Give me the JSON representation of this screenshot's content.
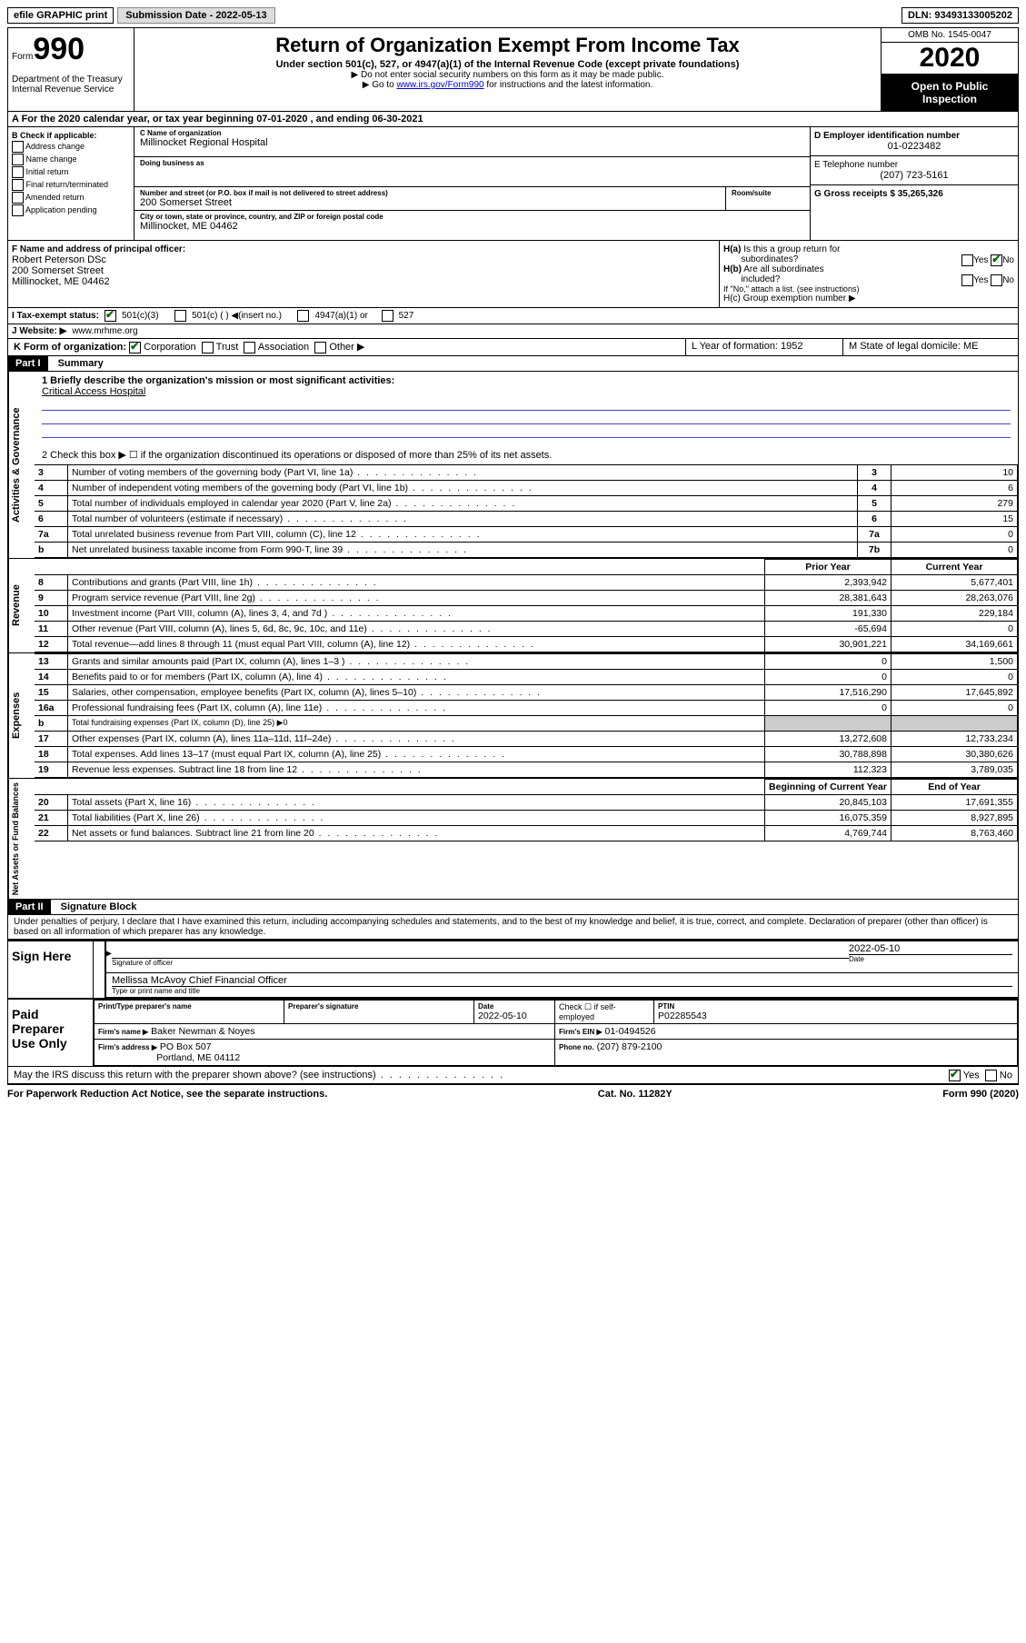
{
  "topbar": {
    "efile": "efile GRAPHIC print",
    "submission_label": "Submission Date - 2022-05-13",
    "dln": "DLN: 93493133005202"
  },
  "header": {
    "form_prefix": "Form",
    "form_number": "990",
    "dept": "Department of the Treasury\nInternal Revenue Service",
    "title": "Return of Organization Exempt From Income Tax",
    "subline": "Under section 501(c), 527, or 4947(a)(1) of the Internal Revenue Code (except private foundations)",
    "note1": "Do not enter social security numbers on this form as it may be made public.",
    "note2_prefix": "Go to ",
    "note2_link": "www.irs.gov/Form990",
    "note2_suffix": " for instructions and the latest information.",
    "omb": "OMB No. 1545-0047",
    "year": "2020",
    "open_public": "Open to Public Inspection"
  },
  "row_a": "A   For the 2020 calendar year, or tax year beginning 07-01-2020    , and ending 06-30-2021",
  "section_b": {
    "label": "B Check if applicable:",
    "items": [
      "Address change",
      "Name change",
      "Initial return",
      "Final return/terminated",
      "Amended return",
      "Application pending"
    ]
  },
  "section_c": {
    "name_label": "C Name of organization",
    "org_name": "Millinocket Regional Hospital",
    "dba_label": "Doing business as",
    "dba": "",
    "street_label": "Number and street (or P.O. box if mail is not delivered to street address)",
    "room_label": "Room/suite",
    "street": "200 Somerset Street",
    "city_label": "City or town, state or province, country, and ZIP or foreign postal code",
    "city": "Millinocket, ME  04462"
  },
  "section_d": {
    "ein_label": "D Employer identification number",
    "ein": "01-0223482",
    "phone_label": "E Telephone number",
    "phone": "(207) 723-5161",
    "gross_label": "G Gross receipts $ 35,265,326"
  },
  "section_f": {
    "label": "F  Name and address of principal officer:",
    "name": "Robert Peterson DSc",
    "street": "200 Somerset Street",
    "city": "Millinocket, ME  04462"
  },
  "section_h": {
    "ha_label": "H(a)  Is this a group return for subordinates?",
    "ha_no": true,
    "hb_label": "H(b)  Are all subordinates included?",
    "hb_note": "If \"No,\" attach a list. (see instructions)",
    "hc_label": "H(c)  Group exemption number ▶"
  },
  "row_i": {
    "label": "I   Tax-exempt status:",
    "c3_checked": true,
    "opts": [
      "501(c)(3)",
      "501(c) (  ) ◀(insert no.)",
      "4947(a)(1) or",
      "527"
    ]
  },
  "row_j": {
    "label": "J  Website: ▶",
    "value": " www.mrhme.org"
  },
  "row_k": {
    "label": "K Form of organization:",
    "corp_checked": true,
    "opts": [
      "Corporation",
      "Trust",
      "Association",
      "Other ▶"
    ]
  },
  "row_lm": {
    "l": "L Year of formation: 1952",
    "m": "M State of legal domicile: ME"
  },
  "part1": {
    "header": "Part I",
    "title": "Summary",
    "q1_label": "1   Briefly describe the organization's mission or most significant activities:",
    "q1_text": "Critical Access Hospital",
    "q2": "2    Check this box ▶ ☐  if the organization discontinued its operations or disposed of more than 25% of its net assets.",
    "side_labels": {
      "gov": "Activities & Governance",
      "rev": "Revenue",
      "exp": "Expenses",
      "net": "Net Assets or Fund Balances"
    },
    "governance_rows": [
      {
        "n": "3",
        "text": "Number of voting members of the governing body (Part VI, line 1a)",
        "box": "3",
        "val": "10"
      },
      {
        "n": "4",
        "text": "Number of independent voting members of the governing body (Part VI, line 1b)",
        "box": "4",
        "val": "6"
      },
      {
        "n": "5",
        "text": "Total number of individuals employed in calendar year 2020 (Part V, line 2a)",
        "box": "5",
        "val": "279"
      },
      {
        "n": "6",
        "text": "Total number of volunteers (estimate if necessary)",
        "box": "6",
        "val": "15"
      },
      {
        "n": "7a",
        "text": "Total unrelated business revenue from Part VIII, column (C), line 12",
        "box": "7a",
        "val": "0"
      },
      {
        "n": "b",
        "text": "Net unrelated business taxable income from Form 990-T, line 39",
        "box": "7b",
        "val": "0"
      }
    ],
    "col_headers": {
      "prior": "Prior Year",
      "current": "Current Year",
      "begin": "Beginning of Current Year",
      "end": "End of Year"
    },
    "revenue_rows": [
      {
        "n": "8",
        "text": "Contributions and grants (Part VIII, line 1h)",
        "p": "2,393,942",
        "c": "5,677,401"
      },
      {
        "n": "9",
        "text": "Program service revenue (Part VIII, line 2g)",
        "p": "28,381,643",
        "c": "28,263,076"
      },
      {
        "n": "10",
        "text": "Investment income (Part VIII, column (A), lines 3, 4, and 7d )",
        "p": "191,330",
        "c": "229,184"
      },
      {
        "n": "11",
        "text": "Other revenue (Part VIII, column (A), lines 5, 6d, 8c, 9c, 10c, and 11e)",
        "p": "-65,694",
        "c": "0"
      },
      {
        "n": "12",
        "text": "Total revenue—add lines 8 through 11 (must equal Part VIII, column (A), line 12)",
        "p": "30,901,221",
        "c": "34,169,661"
      }
    ],
    "expense_rows": [
      {
        "n": "13",
        "text": "Grants and similar amounts paid (Part IX, column (A), lines 1–3 )",
        "p": "0",
        "c": "1,500"
      },
      {
        "n": "14",
        "text": "Benefits paid to or for members (Part IX, column (A), line 4)",
        "p": "0",
        "c": "0"
      },
      {
        "n": "15",
        "text": "Salaries, other compensation, employee benefits (Part IX, column (A), lines 5–10)",
        "p": "17,516,290",
        "c": "17,645,892"
      },
      {
        "n": "16a",
        "text": "Professional fundraising fees (Part IX, column (A), line 11e)",
        "p": "0",
        "c": "0"
      },
      {
        "n": "b",
        "text": "Total fundraising expenses (Part IX, column (D), line 25) ▶0",
        "shade": true
      },
      {
        "n": "17",
        "text": "Other expenses (Part IX, column (A), lines 11a–11d, 11f–24e)",
        "p": "13,272,608",
        "c": "12,733,234"
      },
      {
        "n": "18",
        "text": "Total expenses. Add lines 13–17 (must equal Part IX, column (A), line 25)",
        "p": "30,788,898",
        "c": "30,380,626"
      },
      {
        "n": "19",
        "text": "Revenue less expenses. Subtract line 18 from line 12",
        "p": "112,323",
        "c": "3,789,035"
      }
    ],
    "net_rows": [
      {
        "n": "20",
        "text": "Total assets (Part X, line 16)",
        "p": "20,845,103",
        "c": "17,691,355"
      },
      {
        "n": "21",
        "text": "Total liabilities (Part X, line 26)",
        "p": "16,075,359",
        "c": "8,927,895"
      },
      {
        "n": "22",
        "text": "Net assets or fund balances. Subtract line 21 from line 20",
        "p": "4,769,744",
        "c": "8,763,460"
      }
    ]
  },
  "part2": {
    "header": "Part II",
    "title": "Signature Block",
    "jurat": "Under penalties of perjury, I declare that I have examined this return, including accompanying schedules and statements, and to the best of my knowledge and belief, it is true, correct, and complete. Declaration of preparer (other than officer) is based on all information of which preparer has any knowledge.",
    "sign_here": "Sign Here",
    "sig_officer_label": "Signature of officer",
    "sig_date": "2022-05-10",
    "date_label": "Date",
    "officer_name": "Mellissa McAvoy  Chief Financial Officer",
    "officer_name_label": "Type or print name and title",
    "paid_label": "Paid Preparer Use Only",
    "prep_name_label": "Print/Type preparer's name",
    "prep_sig_label": "Preparer's signature",
    "prep_date_label": "Date",
    "prep_date": "2022-05-10",
    "check_self": "Check ☐ if self-employed",
    "ptin_label": "PTIN",
    "ptin": "P02285543",
    "firm_name_label": "Firm's name    ▶",
    "firm_name": "Baker Newman & Noyes",
    "firm_ein_label": "Firm's EIN ▶",
    "firm_ein": "01-0494526",
    "firm_addr_label": "Firm's address ▶",
    "firm_addr1": "PO Box 507",
    "firm_addr2": "Portland, ME  04112",
    "firm_phone_label": "Phone no.",
    "firm_phone": "(207) 879-2100",
    "discuss": "May the IRS discuss this return with the preparer shown above? (see instructions)",
    "discuss_yes": true
  },
  "footer": {
    "left": "For Paperwork Reduction Act Notice, see the separate instructions.",
    "center": "Cat. No. 11282Y",
    "right": "Form 990 (2020)"
  }
}
